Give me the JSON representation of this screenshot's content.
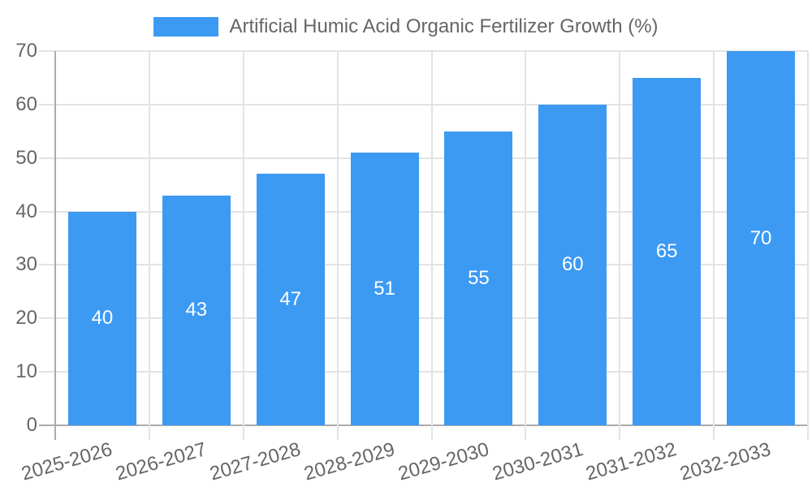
{
  "legend": {
    "label": "Artificial Humic Acid Organic Fertilizer Growth (%)"
  },
  "chart_data": {
    "type": "bar",
    "title": "",
    "legend": [
      "Artificial Humic Acid Organic Fertilizer Growth (%)"
    ],
    "legend_position": "top",
    "categories": [
      "2025-2026",
      "2026-2027",
      "2027-2028",
      "2028-2029",
      "2029-2030",
      "2030-2031",
      "2031-2032",
      "2032-2033"
    ],
    "values": [
      40,
      43,
      47,
      51,
      55,
      60,
      65,
      70
    ],
    "bar_value_labels_shown": true,
    "xlabel": "",
    "ylabel": "",
    "ylim": [
      0,
      70
    ],
    "yticks": [
      0,
      10,
      20,
      30,
      40,
      50,
      60,
      70
    ],
    "grid": true,
    "x_label_rotation_deg": -16,
    "colors": {
      "bar": "#3c9af3",
      "bar_value_label": "#ffffff",
      "tick_text": "#666666",
      "legend_text": "#666666",
      "gridline": "#e3e3e3",
      "axis_line": "#ababab",
      "background": "#ffffff"
    }
  }
}
